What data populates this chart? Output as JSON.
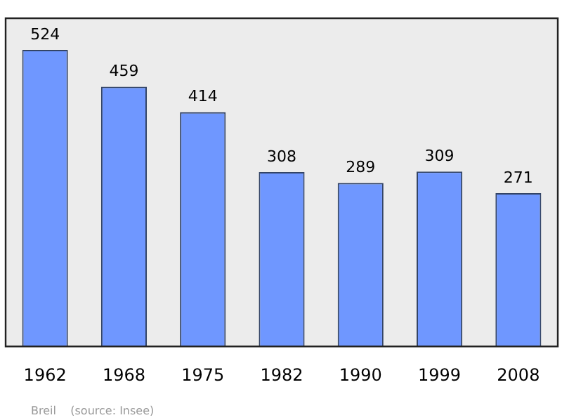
{
  "chart_data": {
    "type": "bar",
    "categories": [
      "1962",
      "1968",
      "1975",
      "1982",
      "1990",
      "1999",
      "2008"
    ],
    "values": [
      524,
      459,
      414,
      308,
      289,
      309,
      271
    ],
    "color": "#6f97ff",
    "ylim": [
      0,
      580
    ],
    "data_labels": true,
    "grid": false,
    "legend": false,
    "annotations": [
      "Breil    (source: Insee)"
    ]
  }
}
